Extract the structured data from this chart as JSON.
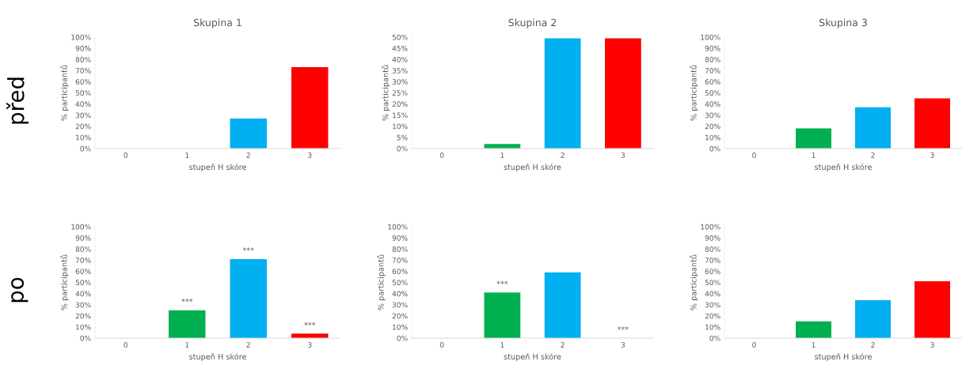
{
  "chart_data": [
    {
      "type": "bar",
      "title": "Skupina 1",
      "xlabel": "stupeň H skóre",
      "ylabel": "% participantů",
      "categories": [
        "0",
        "1",
        "2",
        "3"
      ],
      "values": [
        0,
        0,
        27,
        73
      ],
      "colors": [
        "#00b050",
        "#00b050",
        "#00b0f0",
        "#ff0000"
      ],
      "ylim": [
        0,
        100
      ],
      "yticks": [
        {
          "value": 0,
          "label": "0%"
        },
        {
          "value": 10,
          "label": "10%"
        },
        {
          "value": 20,
          "label": "20%"
        },
        {
          "value": 30,
          "label": "30%"
        },
        {
          "value": 40,
          "label": "40%"
        },
        {
          "value": 50,
          "label": "50%"
        },
        {
          "value": 60,
          "label": "60%"
        },
        {
          "value": 70,
          "label": "70%"
        },
        {
          "value": 80,
          "label": "80%"
        },
        {
          "value": 90,
          "label": "90%"
        },
        {
          "value": 100,
          "label": "100%"
        }
      ],
      "annotations": [
        "před"
      ]
    },
    {
      "type": "bar",
      "title": "Skupina 2",
      "xlabel": "stupeň H skóre",
      "ylabel": "% participantů",
      "categories": [
        "0",
        "1",
        "2",
        "3"
      ],
      "values": [
        0,
        2,
        49.5,
        49.5
      ],
      "colors": [
        "#00b050",
        "#00b050",
        "#00b0f0",
        "#ff0000"
      ],
      "ylim": [
        0,
        50
      ],
      "yticks": [
        {
          "value": 0,
          "label": "0%"
        },
        {
          "value": 5,
          "label": "5%"
        },
        {
          "value": 10,
          "label": "10%"
        },
        {
          "value": 15,
          "label": "15%"
        },
        {
          "value": 20,
          "label": "20%"
        },
        {
          "value": 25,
          "label": "25%"
        },
        {
          "value": 30,
          "label": "30%"
        },
        {
          "value": 35,
          "label": "35%"
        },
        {
          "value": 40,
          "label": "40%"
        },
        {
          "value": 45,
          "label": "45%"
        },
        {
          "value": 50,
          "label": "50%"
        }
      ]
    },
    {
      "type": "bar",
      "title": "Skupina 3",
      "xlabel": "stupeň H skóre",
      "ylabel": "% participantů",
      "categories": [
        "0",
        "1",
        "2",
        "3"
      ],
      "values": [
        0,
        18,
        37,
        45
      ],
      "colors": [
        "#00b050",
        "#00b050",
        "#00b0f0",
        "#ff0000"
      ],
      "ylim": [
        0,
        100
      ],
      "yticks": [
        {
          "value": 0,
          "label": "0%"
        },
        {
          "value": 10,
          "label": "10%"
        },
        {
          "value": 20,
          "label": "20%"
        },
        {
          "value": 30,
          "label": "30%"
        },
        {
          "value": 40,
          "label": "40%"
        },
        {
          "value": 50,
          "label": "50%"
        },
        {
          "value": 60,
          "label": "60%"
        },
        {
          "value": 70,
          "label": "70%"
        },
        {
          "value": 80,
          "label": "80%"
        },
        {
          "value": 90,
          "label": "90%"
        },
        {
          "value": 100,
          "label": "100%"
        }
      ]
    },
    {
      "type": "bar",
      "xlabel": "stupeň H skóre",
      "ylabel": "% participantů",
      "categories": [
        "0",
        "1",
        "2",
        "3"
      ],
      "values": [
        0,
        25,
        71,
        4
      ],
      "colors": [
        "#00b050",
        "#00b050",
        "#00b0f0",
        "#ff0000"
      ],
      "ylim": [
        0,
        100
      ],
      "yticks": [
        {
          "value": 0,
          "label": "0%"
        },
        {
          "value": 10,
          "label": "10%"
        },
        {
          "value": 20,
          "label": "20%"
        },
        {
          "value": 30,
          "label": "30%"
        },
        {
          "value": 40,
          "label": "40%"
        },
        {
          "value": 50,
          "label": "50%"
        },
        {
          "value": 60,
          "label": "60%"
        },
        {
          "value": 70,
          "label": "70%"
        },
        {
          "value": 80,
          "label": "80%"
        },
        {
          "value": 90,
          "label": "90%"
        },
        {
          "value": 100,
          "label": "100%"
        }
      ],
      "annotations": [
        "po",
        {
          "text": "***",
          "x": "1",
          "y": 25
        },
        {
          "text": "***",
          "x": "2",
          "y": 71
        },
        {
          "text": "***",
          "x": "3",
          "y": 4
        }
      ]
    },
    {
      "type": "bar",
      "xlabel": "stupeň H skóre",
      "ylabel": "% participantů",
      "categories": [
        "0",
        "1",
        "2",
        "3"
      ],
      "values": [
        0,
        41,
        59,
        0
      ],
      "colors": [
        "#00b050",
        "#00b050",
        "#00b0f0",
        "#ff0000"
      ],
      "ylim": [
        0,
        100
      ],
      "yticks": [
        {
          "value": 0,
          "label": "0%"
        },
        {
          "value": 10,
          "label": "10%"
        },
        {
          "value": 20,
          "label": "20%"
        },
        {
          "value": 30,
          "label": "30%"
        },
        {
          "value": 40,
          "label": "40%"
        },
        {
          "value": 50,
          "label": "50%"
        },
        {
          "value": 60,
          "label": "60%"
        },
        {
          "value": 70,
          "label": "70%"
        },
        {
          "value": 80,
          "label": "80%"
        },
        {
          "value": 90,
          "label": "90%"
        },
        {
          "value": 100,
          "label": "100%"
        }
      ],
      "annotations": [
        {
          "text": "***",
          "x": "1",
          "y": 41
        },
        {
          "text": "***",
          "x": "3",
          "y": 0
        }
      ]
    },
    {
      "type": "bar",
      "xlabel": "stupeň H skóre",
      "ylabel": "% participantů",
      "categories": [
        "0",
        "1",
        "2",
        "3"
      ],
      "values": [
        0,
        15,
        34,
        51
      ],
      "colors": [
        "#00b050",
        "#00b050",
        "#00b0f0",
        "#ff0000"
      ],
      "ylim": [
        0,
        100
      ],
      "yticks": [
        {
          "value": 0,
          "label": "0%"
        },
        {
          "value": 10,
          "label": "10%"
        },
        {
          "value": 20,
          "label": "20%"
        },
        {
          "value": 30,
          "label": "30%"
        },
        {
          "value": 40,
          "label": "40%"
        },
        {
          "value": 50,
          "label": "50%"
        },
        {
          "value": 60,
          "label": "60%"
        },
        {
          "value": 70,
          "label": "70%"
        },
        {
          "value": 80,
          "label": "80%"
        },
        {
          "value": 90,
          "label": "90%"
        },
        {
          "value": 100,
          "label": "100%"
        }
      ]
    }
  ]
}
